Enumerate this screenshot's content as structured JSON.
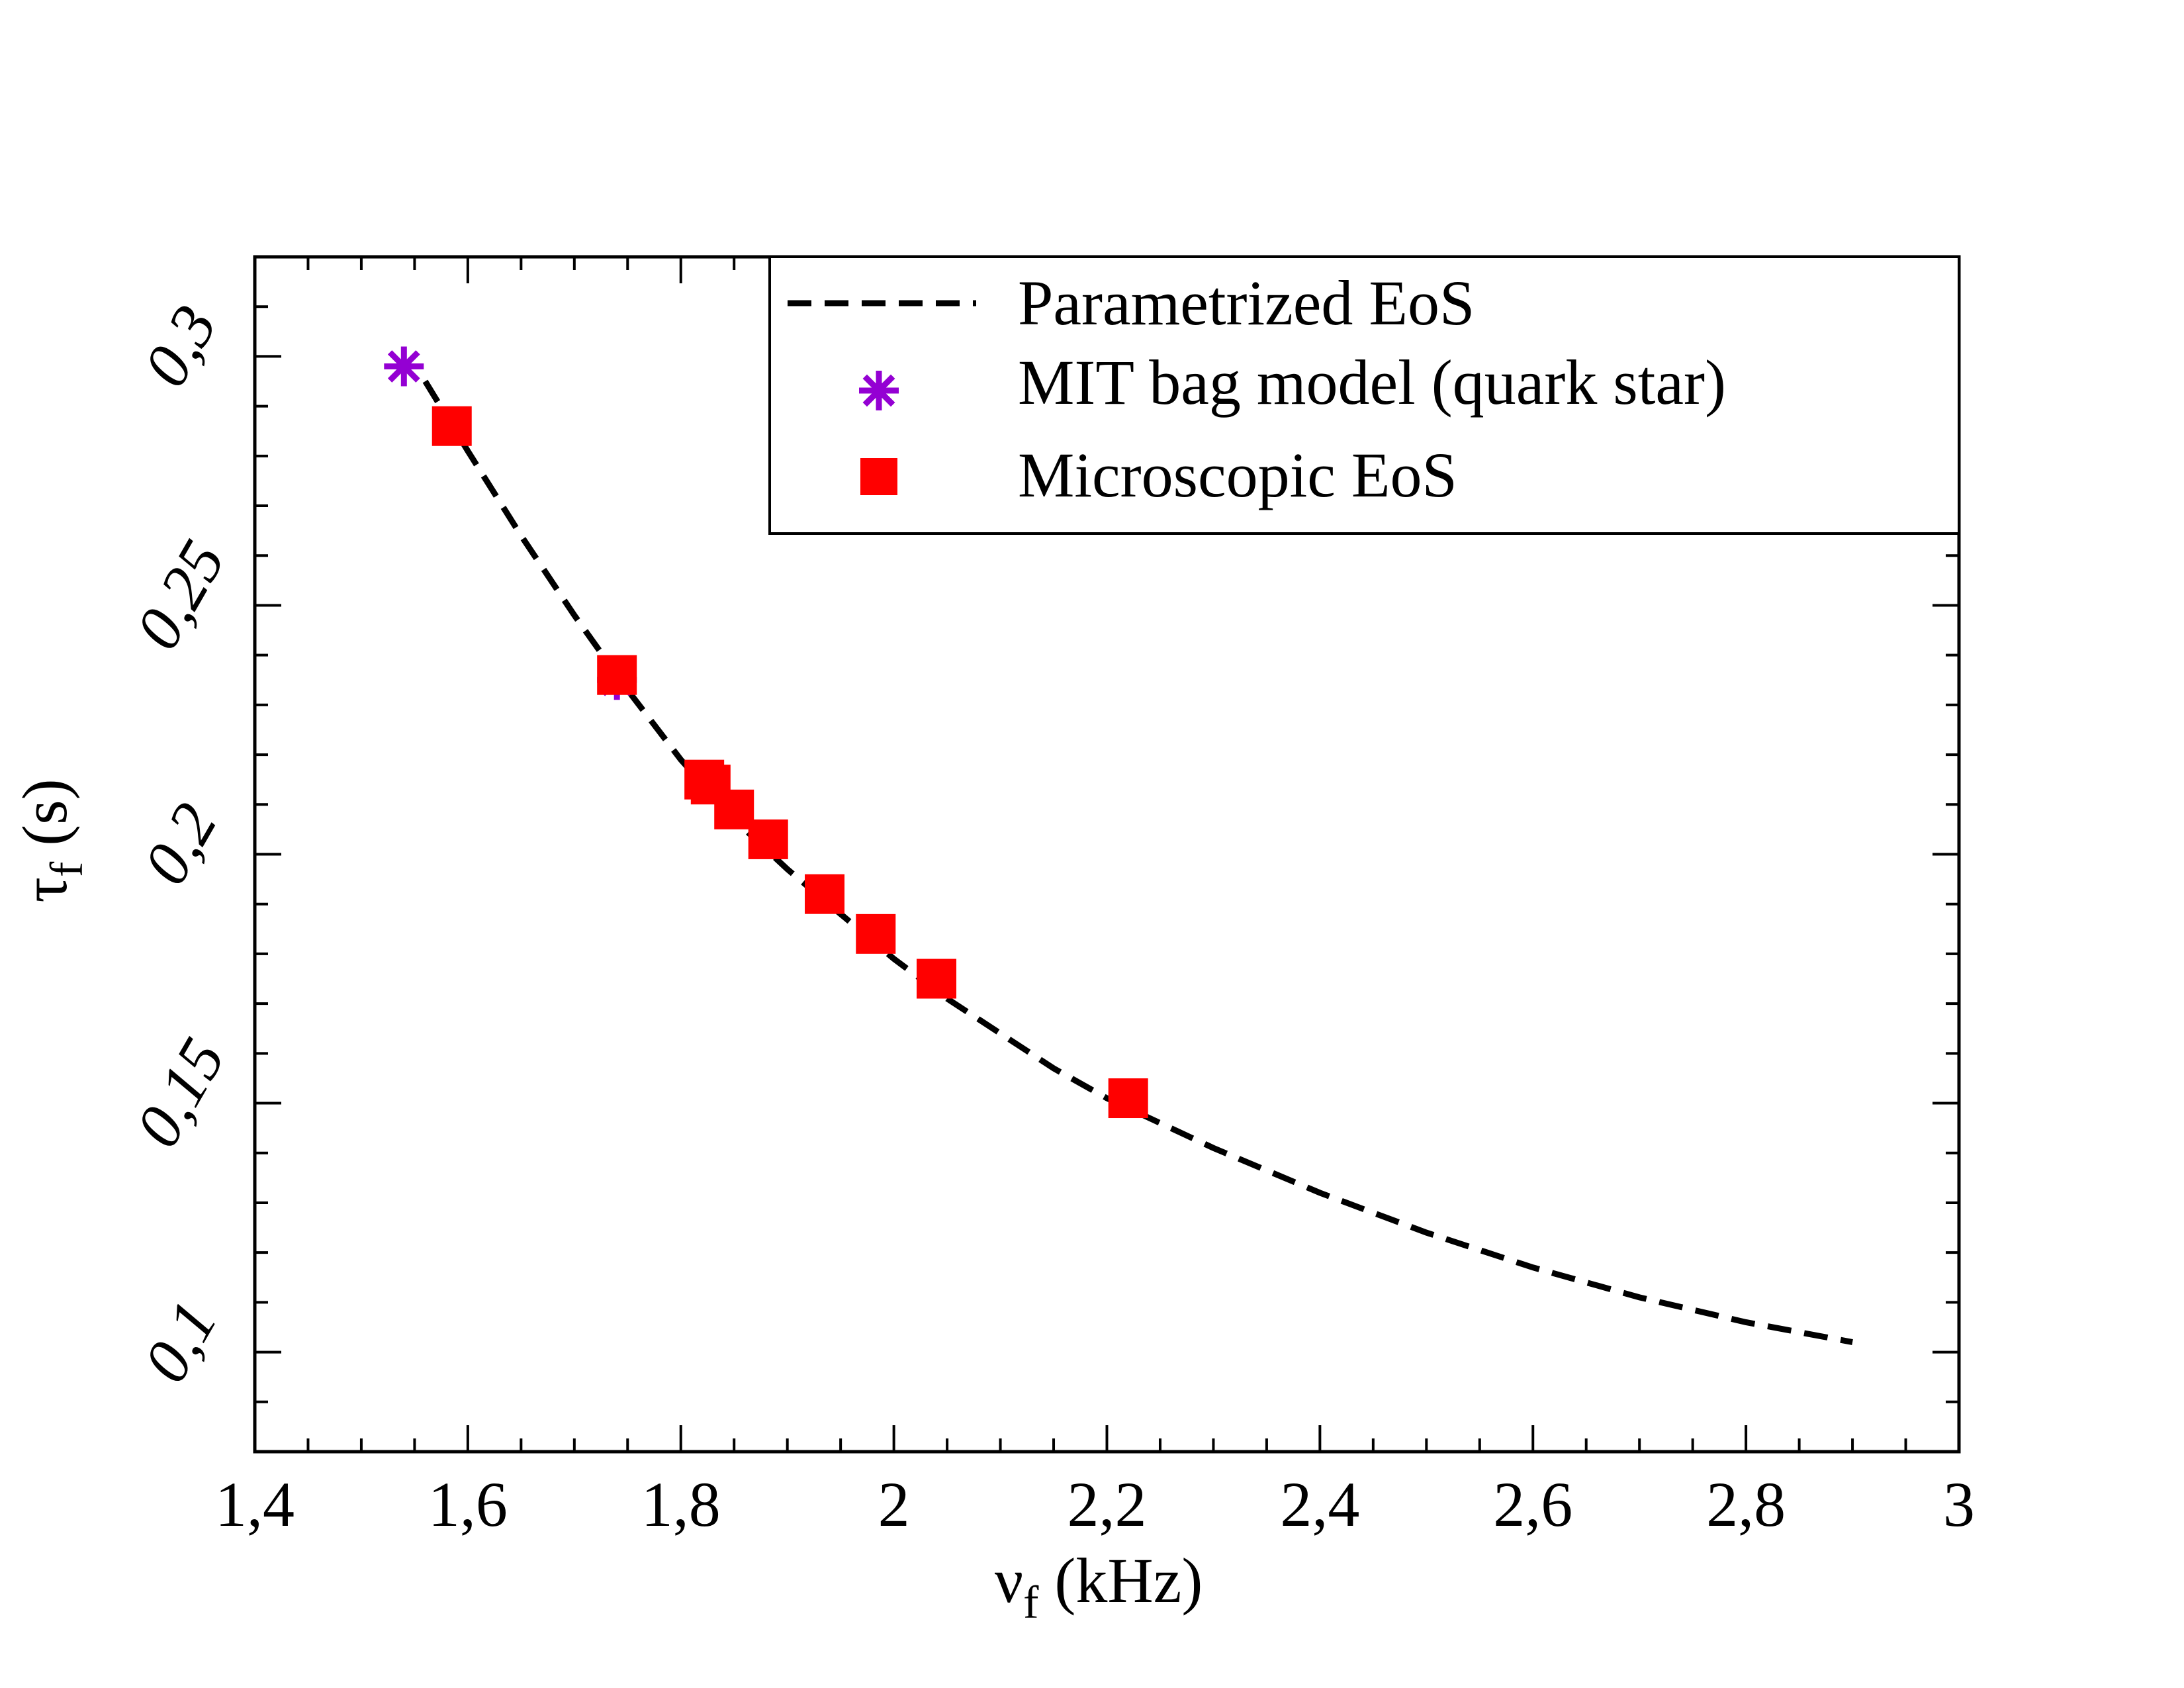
{
  "chart_data": {
    "type": "scatter",
    "title": "",
    "xlabel": {
      "symbol": "ν",
      "sub": "f",
      "unit": "(kHz)"
    },
    "ylabel": {
      "symbol": "τ",
      "sub": "f",
      "unit": "(s)"
    },
    "xlim": [
      1.4,
      3.0
    ],
    "ylim": [
      0.08,
      0.32
    ],
    "x_ticks": [
      "1,4",
      "1,6",
      "1,8",
      "2",
      "2,2",
      "2,4",
      "2,6",
      "2,8",
      "3"
    ],
    "x_tick_values": [
      1.4,
      1.6,
      1.8,
      2.0,
      2.2,
      2.4,
      2.6,
      2.8,
      3.0
    ],
    "y_ticks": [
      "0,1",
      "0,15",
      "0,2",
      "0,25",
      "0,3"
    ],
    "y_tick_values": [
      0.1,
      0.15,
      0.2,
      0.25,
      0.3
    ],
    "grid": false,
    "legend_position": "top-right",
    "series": [
      {
        "name": "Parametrized EoS",
        "kind": "dashed-line",
        "color": "#000000",
        "x": [
          1.56,
          1.6,
          1.65,
          1.7,
          1.75,
          1.8,
          1.85,
          1.9,
          1.95,
          2.0,
          2.05,
          2.1,
          2.15,
          2.2,
          2.25,
          2.3,
          2.4,
          2.5,
          2.6,
          2.7,
          2.8,
          2.9
        ],
        "y": [
          0.295,
          0.281,
          0.264,
          0.248,
          0.233,
          0.219,
          0.207,
          0.197,
          0.188,
          0.179,
          0.171,
          0.164,
          0.157,
          0.151,
          0.146,
          0.141,
          0.132,
          0.124,
          0.117,
          0.111,
          0.106,
          0.102
        ]
      },
      {
        "name": "MIT bag model (quark star)",
        "kind": "asterisk",
        "color": "#9400d3",
        "x": [
          1.54,
          1.74
        ],
        "y": [
          0.298,
          0.235
        ]
      },
      {
        "name": "Microscopic EoS",
        "kind": "square",
        "color": "#ff0000",
        "x": [
          1.585,
          1.74,
          1.822,
          1.828,
          1.85,
          1.882,
          1.935,
          1.983,
          2.04,
          2.22
        ],
        "y": [
          0.286,
          0.236,
          0.215,
          0.214,
          0.209,
          0.203,
          0.192,
          0.184,
          0.175,
          0.151
        ]
      }
    ]
  }
}
